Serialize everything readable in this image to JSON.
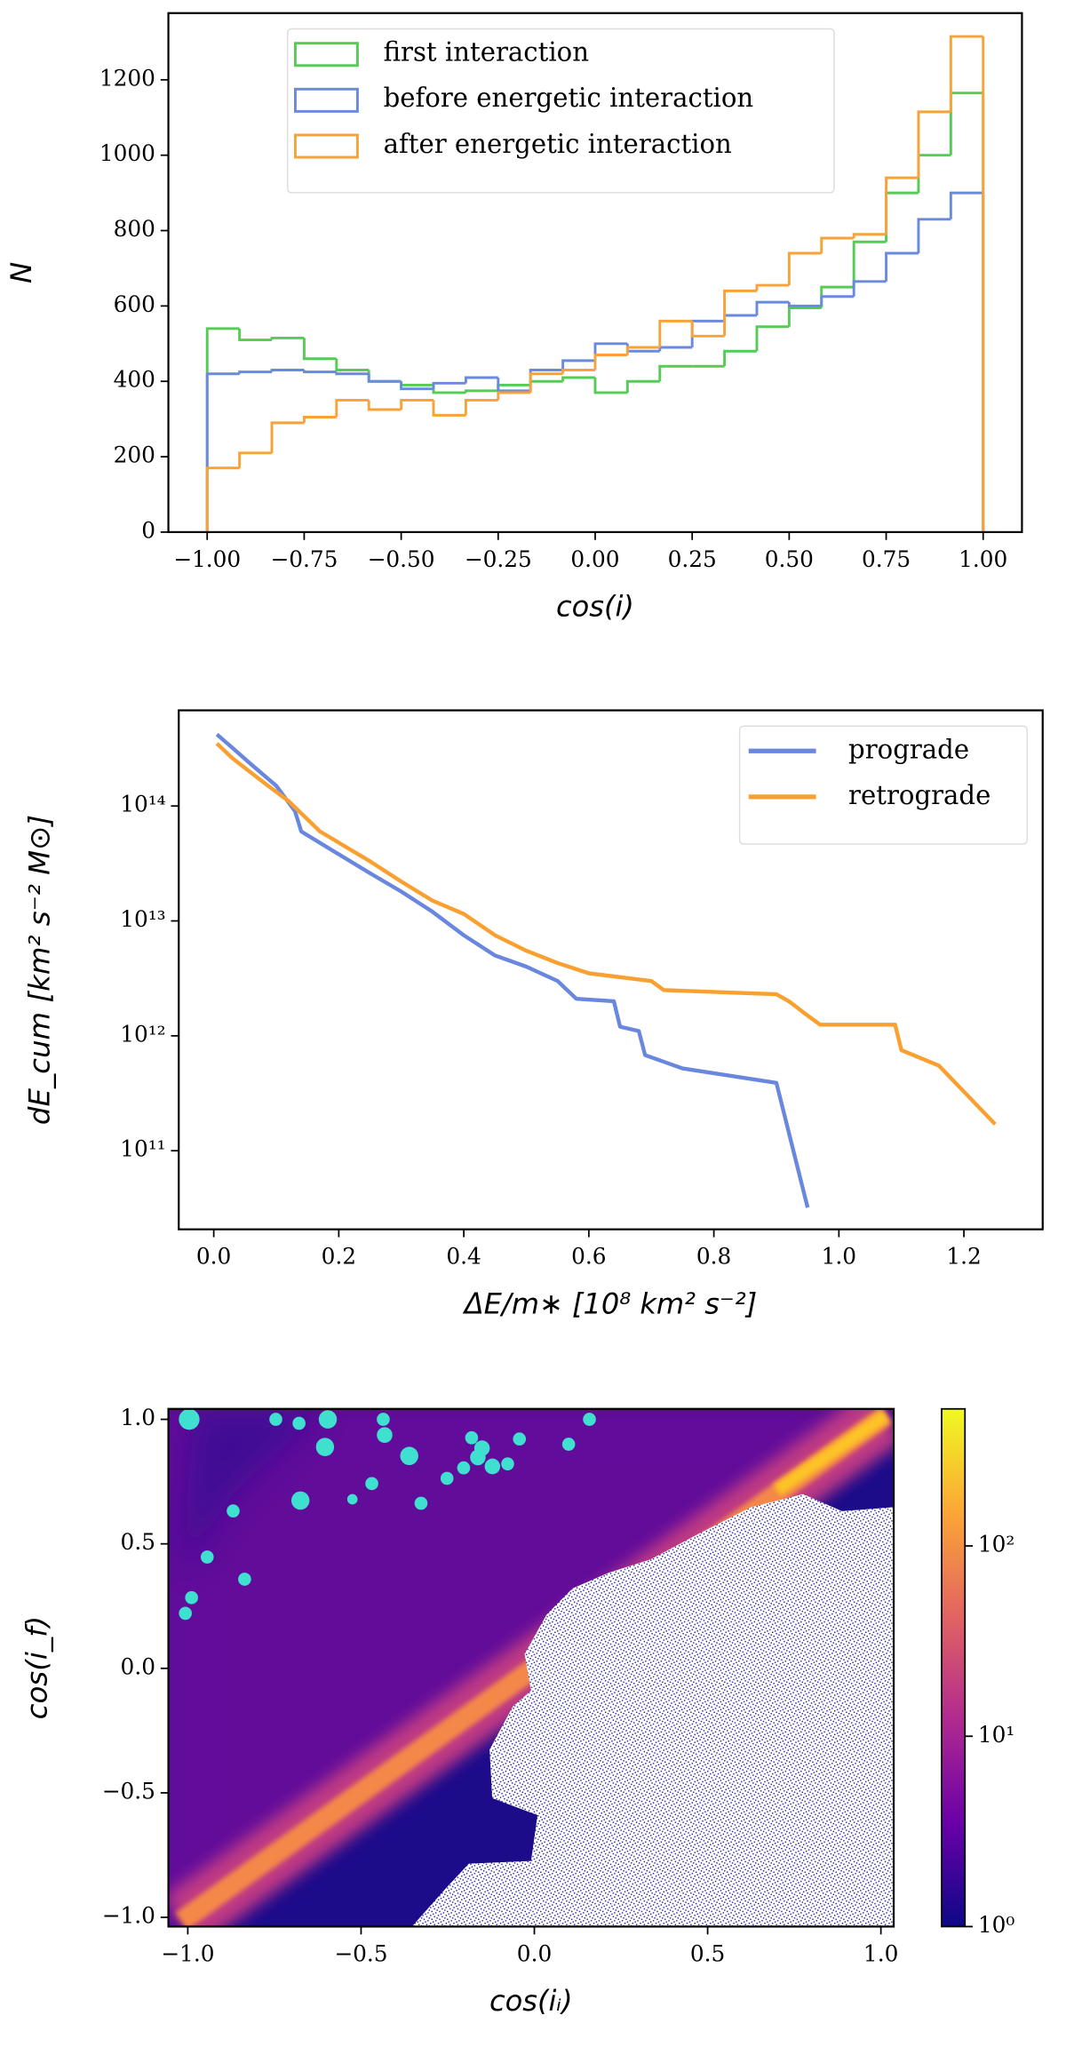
{
  "chart_data": [
    {
      "type": "histogram",
      "xlabel": "cos(i)",
      "ylabel": "N",
      "bins": [
        -1,
        -0.9167,
        -0.8333,
        -0.75,
        -0.6667,
        -0.5833,
        -0.5,
        -0.4167,
        -0.3333,
        -0.25,
        -0.1667,
        -0.0833,
        0,
        0.0833,
        0.1667,
        0.25,
        0.3333,
        0.4167,
        0.5,
        0.5833,
        0.6667,
        0.75,
        0.8333,
        0.9167,
        1
      ],
      "series": [
        {
          "name": "first interaction",
          "color": "#55cc55",
          "values": [
            540,
            510,
            515,
            460,
            430,
            400,
            390,
            370,
            375,
            390,
            400,
            410,
            370,
            400,
            440,
            440,
            480,
            545,
            595,
            650,
            770,
            900,
            1000,
            1165
          ]
        },
        {
          "name": "before energetic interaction",
          "color": "#6a8ae0",
          "values": [
            420,
            425,
            430,
            425,
            420,
            400,
            380,
            395,
            410,
            375,
            430,
            455,
            500,
            480,
            490,
            560,
            575,
            610,
            600,
            625,
            665,
            740,
            830,
            900
          ]
        },
        {
          "name": "after energetic interaction",
          "color": "#f9a23a",
          "values": [
            170,
            210,
            290,
            305,
            350,
            325,
            350,
            310,
            350,
            370,
            420,
            430,
            470,
            490,
            560,
            520,
            640,
            655,
            740,
            780,
            790,
            940,
            1115,
            1315
          ]
        }
      ],
      "xlim": [
        -1.1,
        1.1
      ],
      "ylim": [
        0,
        1377
      ],
      "xticks": [
        {
          "value": -1,
          "label": "−1.00"
        },
        {
          "value": -0.75,
          "label": "−0.75"
        },
        {
          "value": -0.5,
          "label": "−0.50"
        },
        {
          "value": -0.25,
          "label": "−0.25"
        },
        {
          "value": 0,
          "label": "0.00"
        },
        {
          "value": 0.25,
          "label": "0.25"
        },
        {
          "value": 0.5,
          "label": "0.50"
        },
        {
          "value": 0.75,
          "label": "0.75"
        },
        {
          "value": 1,
          "label": "1.00"
        }
      ],
      "yticks": [
        0,
        200,
        400,
        600,
        800,
        1000,
        1200
      ],
      "legend": "upper center"
    },
    {
      "type": "line",
      "xlabel": "ΔE/m∗ [10⁸ km² s⁻²]",
      "ylabel": "dE_cum [km² s⁻² M⊙]",
      "yscale": "log",
      "series": [
        {
          "name": "prograde",
          "color": "#6a87e0",
          "x": [
            0.005,
            0.03,
            0.06,
            0.1,
            0.13,
            0.14,
            0.2,
            0.25,
            0.3,
            0.35,
            0.4,
            0.45,
            0.5,
            0.55,
            0.58,
            0.64,
            0.65,
            0.68,
            0.69,
            0.75,
            0.9,
            0.95
          ],
          "values": [
            420000000000000.0,
            320000000000000.0,
            230000000000000.0,
            150000000000000.0,
            90000000000000.0,
            60000000000000.0,
            38000000000000.0,
            26000000000000.0,
            18000000000000.0,
            12000000000000.0,
            7500000000000.0,
            5000000000000.0,
            4000000000000.0,
            3000000000000.0,
            2100000000000.0,
            2000000000000.0,
            1200000000000.0,
            1100000000000.0,
            680000000000.0,
            520000000000.0,
            390000000000.0,
            32000000000.0
          ]
        },
        {
          "name": "retrograde",
          "color": "#f9a030",
          "x": [
            0.005,
            0.03,
            0.08,
            0.12,
            0.17,
            0.25,
            0.3,
            0.35,
            0.4,
            0.45,
            0.5,
            0.55,
            0.6,
            0.7,
            0.72,
            0.9,
            0.92,
            0.95,
            0.97,
            1.09,
            1.1,
            1.16,
            1.25
          ],
          "values": [
            350000000000000.0,
            260000000000000.0,
            160000000000000.0,
            110000000000000.0,
            60000000000000.0,
            33000000000000.0,
            22000000000000.0,
            15000000000000.0,
            11500000000000.0,
            7500000000000.0,
            5500000000000.0,
            4300000000000.0,
            3500000000000.0,
            3000000000000.0,
            2500000000000.0,
            2300000000000.0,
            2000000000000.0,
            1500000000000.0,
            1250000000000.0,
            1250000000000.0,
            750000000000.0,
            550000000000.0,
            170000000000.0
          ]
        }
      ],
      "xlim": [
        -0.056,
        1.326
      ],
      "ylim": [
        20700000000.0,
        680000000000000.0
      ],
      "xticks": [
        {
          "value": 0,
          "label": "0.0"
        },
        0.2,
        0.4,
        0.6,
        0.8,
        {
          "value": 1,
          "label": "1.0"
        },
        1.2
      ],
      "yticks": [
        {
          "value": 100000000000.0,
          "label": "10¹¹"
        },
        {
          "value": 1000000000000.0,
          "label": "10¹²"
        },
        {
          "value": 10000000000000.0,
          "label": "10¹³"
        },
        {
          "value": 100000000000000.0,
          "label": "10¹⁴"
        }
      ],
      "legend": "upper right"
    },
    {
      "type": "heatmap",
      "xlabel": "cos(iᵢ)",
      "ylabel": "cos(i_f)",
      "colormap": "plasma",
      "points": {
        "color": "#40e0d0",
        "x": [
          -0.996,
          -0.746,
          -0.679,
          -0.596,
          -0.436,
          -0.432,
          -0.604,
          -0.361,
          -0.181,
          -0.151,
          -0.163,
          -0.043,
          0.099,
          0.159,
          -0.204,
          -0.121,
          -0.077,
          -0.252,
          -0.469,
          -0.525,
          -0.675,
          -0.327,
          -0.869,
          -0.944,
          -0.836,
          -0.989,
          -1.007
        ],
        "y": [
          1.0,
          1.0,
          0.984,
          1.0,
          1.0,
          0.937,
          0.889,
          0.853,
          0.926,
          0.884,
          0.847,
          0.921,
          0.9,
          1.0,
          0.805,
          0.811,
          0.821,
          0.763,
          0.742,
          0.679,
          0.674,
          0.663,
          0.632,
          0.447,
          0.358,
          0.284,
          0.221
        ],
        "sizes": [
          8,
          5,
          5,
          7,
          5,
          6,
          7,
          7,
          5,
          6,
          6,
          5,
          5,
          5,
          5,
          6,
          5,
          5,
          5,
          4,
          7,
          5,
          5,
          5,
          5,
          5,
          5
        ]
      },
      "xlim": [
        -1.056,
        1.037
      ],
      "ylim": [
        -1.037,
        1.042
      ],
      "xticks": [
        {
          "value": -1,
          "label": "−1.0"
        },
        {
          "value": -0.5,
          "label": "−0.5"
        },
        {
          "value": 0,
          "label": "0.0"
        },
        0.5,
        {
          "value": 1,
          "label": "1.0"
        }
      ],
      "yticks": [
        {
          "value": -1,
          "label": "−1.0"
        },
        {
          "value": -0.5,
          "label": "−0.5"
        },
        {
          "value": 0,
          "label": "0.0"
        },
        0.5,
        {
          "value": 1,
          "label": "1.0"
        }
      ],
      "colorbar": {
        "scale": "log",
        "lim": [
          1,
          525
        ],
        "ticks": [
          {
            "value": 1,
            "label": "10⁰"
          },
          {
            "value": 10,
            "label": "10¹"
          },
          {
            "value": 100,
            "label": "10²"
          }
        ]
      }
    }
  ]
}
